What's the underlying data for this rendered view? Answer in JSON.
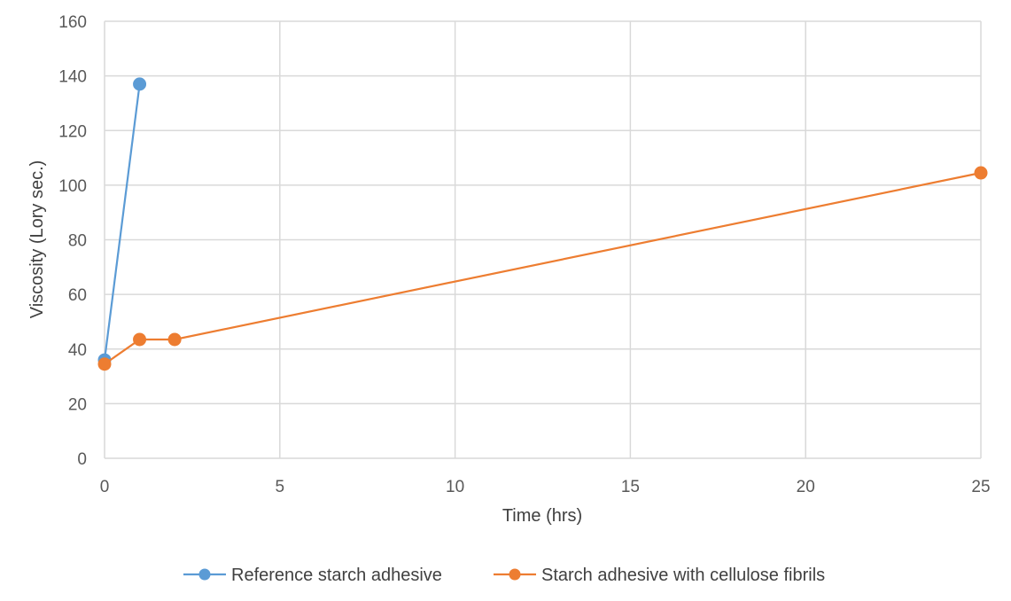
{
  "chart_data": {
    "type": "scatter",
    "mode": "lines+markers",
    "title": "",
    "xlabel": "Time (hrs)",
    "ylabel": "Viscosity (Lory sec.)",
    "xlim": [
      0,
      25
    ],
    "ylim": [
      0,
      160
    ],
    "xticks": [
      0,
      5,
      10,
      15,
      20,
      25
    ],
    "yticks": [
      0,
      20,
      40,
      60,
      80,
      100,
      120,
      140,
      160
    ],
    "grid": true,
    "legend_position": "bottom",
    "series": [
      {
        "name": "Reference starch adhesive",
        "color": "#5b9bd5",
        "x": [
          0,
          1
        ],
        "y": [
          36,
          137
        ]
      },
      {
        "name": "Starch adhesive with cellulose fibrils",
        "color": "#ed7d31",
        "x": [
          0,
          1,
          2,
          25
        ],
        "y": [
          34.5,
          43.5,
          43.5,
          104.5
        ]
      }
    ]
  }
}
